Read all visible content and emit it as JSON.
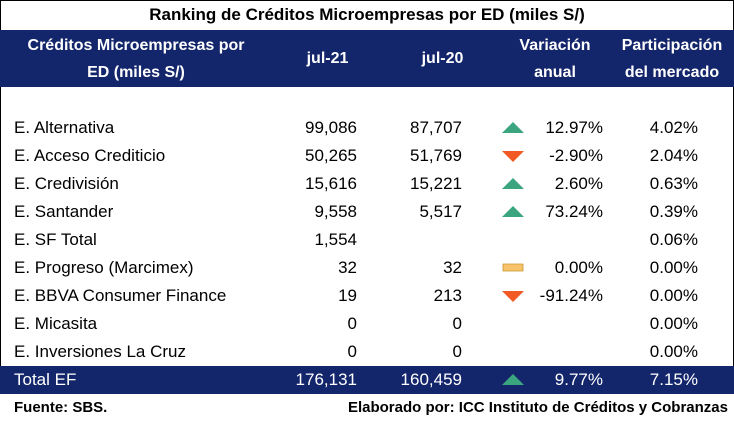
{
  "title": "Ranking de Créditos Microempresas por ED (miles S/)",
  "header": {
    "col0_line1": "Créditos Microempresas por",
    "col0_line2": "ED (miles S/)",
    "col1": "jul-21",
    "col2": "jul-20",
    "col3_line1": "Variación",
    "col3_line2": "anual",
    "col4_line1": "Participación",
    "col4_line2": "del mercado"
  },
  "colors": {
    "header_bg": "#14266b",
    "up": "#3aa57e",
    "down": "#f15a24",
    "flat": "#f6c36b"
  },
  "rows": [
    {
      "name": "E. Alternativa",
      "jul21": "99,086",
      "jul20": "87,707",
      "indicator": "up",
      "var": "12.97%",
      "share": "4.02%"
    },
    {
      "name": "E. Acceso Crediticio",
      "jul21": "50,265",
      "jul20": "51,769",
      "indicator": "down",
      "var": "-2.90%",
      "share": "2.04%"
    },
    {
      "name": "E. Credivisión",
      "jul21": "15,616",
      "jul20": "15,221",
      "indicator": "up",
      "var": "2.60%",
      "share": "0.63%"
    },
    {
      "name": "E. Santander",
      "jul21": "9,558",
      "jul20": "5,517",
      "indicator": "up",
      "var": "73.24%",
      "share": "0.39%"
    },
    {
      "name": "E. SF Total",
      "jul21": "1,554",
      "jul20": "",
      "indicator": "",
      "var": "",
      "share": "0.06%"
    },
    {
      "name": "E. Progreso (Marcimex)",
      "jul21": "32",
      "jul20": "32",
      "indicator": "flat",
      "var": "0.00%",
      "share": "0.00%"
    },
    {
      "name": "E. BBVA Consumer Finance",
      "jul21": "19",
      "jul20": "213",
      "indicator": "down",
      "var": "-91.24%",
      "share": "0.00%"
    },
    {
      "name": "E. Micasita",
      "jul21": "0",
      "jul20": "0",
      "indicator": "",
      "var": "",
      "share": "0.00%"
    },
    {
      "name": "E. Inversiones La Cruz",
      "jul21": "0",
      "jul20": "0",
      "indicator": "",
      "var": "",
      "share": "0.00%"
    }
  ],
  "total": {
    "name": "Total EF",
    "jul21": "176,131",
    "jul20": "160,459",
    "indicator": "up",
    "var": "9.77%",
    "share": "7.15%"
  },
  "footer": {
    "source": "Fuente: SBS.",
    "credit": "Elaborado por: ICC Instituto de Créditos y Cobranzas"
  }
}
